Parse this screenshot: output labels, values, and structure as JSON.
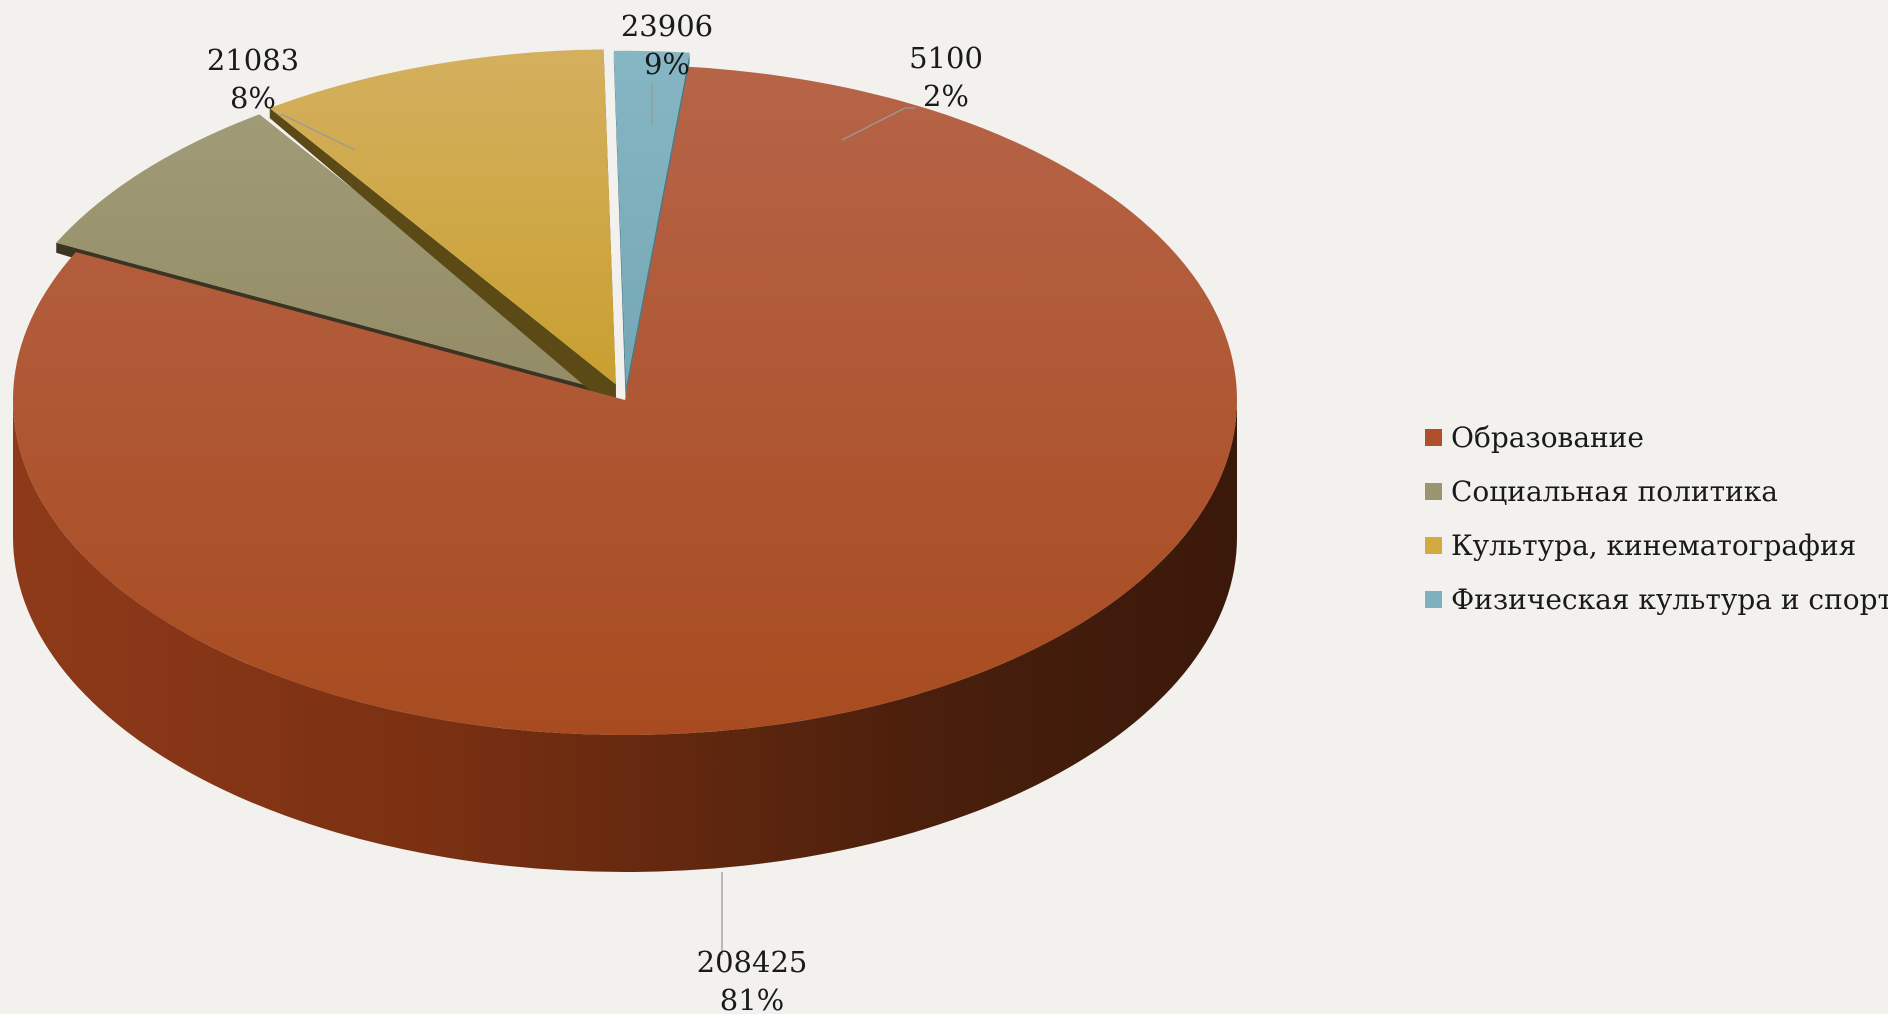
{
  "chart_data": {
    "type": "pie",
    "title": "",
    "is_3d": true,
    "exploded": true,
    "legend_position": "right",
    "categories": [
      "Образование",
      "Социальная политика",
      "Культура, кинематография",
      "Физическая культура и спорт"
    ],
    "values": [
      208425,
      21083,
      23906,
      5100
    ],
    "value_labels": [
      "208425",
      "21083",
      "23906",
      "5100"
    ],
    "percent_labels": [
      "81%",
      "8%",
      "9%",
      "2%"
    ],
    "colors": [
      "#b0502a",
      "#9a9470",
      "#d2aa42",
      "#7fb0bd"
    ]
  }
}
